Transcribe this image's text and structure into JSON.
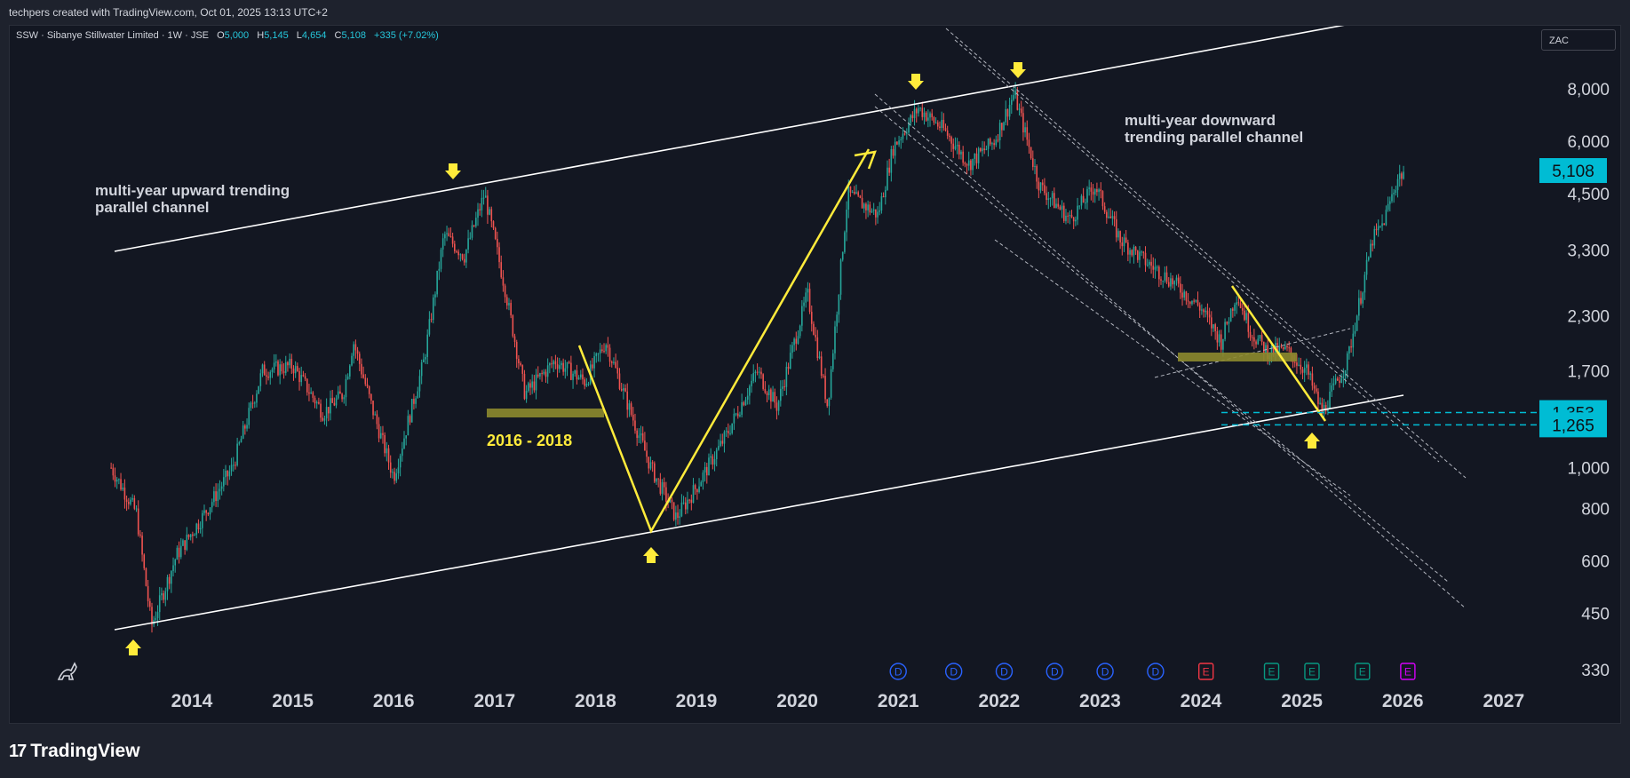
{
  "header": {
    "credit": "techpers created with TradingView.com, Oct 01, 2025 13:13 UTC+2"
  },
  "legend": {
    "symbol": "SSW · Sibanye Stillwater Limited · 1W · JSE",
    "o_label": "O",
    "o_value": "5,000",
    "h_label": "H",
    "h_value": "5,145",
    "l_label": "L",
    "l_value": "4,654",
    "c_label": "C",
    "c_value": "5,108",
    "change": "+335 (+7.02%)"
  },
  "currency": "ZAC",
  "footer": {
    "brand": "TradingView"
  },
  "colors": {
    "background": "#131722",
    "up": "#26a69a",
    "down": "#ef5350",
    "highlight": "#ffeb3b",
    "accent": "#00bcd4"
  },
  "annotations": {
    "upward_channel": [
      "multi-year upward trending",
      "parallel channel"
    ],
    "downward_channel": [
      "multi-year downward",
      "trending parallel channel"
    ],
    "range": "2016 - 2018"
  },
  "chart_data": {
    "type": "candlestick",
    "scale": "log",
    "ylim": [
      330,
      10500
    ],
    "x_ticks": [
      "2014",
      "2015",
      "2016",
      "2017",
      "2018",
      "2019",
      "2020",
      "2021",
      "2022",
      "2023",
      "2024",
      "2025",
      "2026",
      "2027"
    ],
    "y_ticks": [
      {
        "value": 8000,
        "label": "8,000"
      },
      {
        "value": 6000,
        "label": "6,000"
      },
      {
        "value": 4500,
        "label": "4,500"
      },
      {
        "value": 3300,
        "label": "3,300"
      },
      {
        "value": 2300,
        "label": "2,300"
      },
      {
        "value": 1700,
        "label": "1,700"
      },
      {
        "value": 1000,
        "label": "1,000"
      },
      {
        "value": 800,
        "label": "800"
      },
      {
        "value": 600,
        "label": "600"
      },
      {
        "value": 450,
        "label": "450"
      },
      {
        "value": 330,
        "label": "330"
      }
    ],
    "price_labels": [
      {
        "value": 5108,
        "label": "5,108"
      },
      {
        "value": 1353,
        "label": "1,353"
      },
      {
        "value": 1265,
        "label": "1,265"
      }
    ],
    "price_path": [
      [
        2013.2,
        1000
      ],
      [
        2013.45,
        780
      ],
      [
        2013.6,
        420
      ],
      [
        2013.85,
        620
      ],
      [
        2014.1,
        760
      ],
      [
        2014.4,
        1000
      ],
      [
        2014.7,
        1700
      ],
      [
        2015.0,
        1750
      ],
      [
        2015.3,
        1350
      ],
      [
        2015.5,
        1500
      ],
      [
        2015.6,
        2000
      ],
      [
        2015.8,
        1350
      ],
      [
        2016.0,
        950
      ],
      [
        2016.3,
        1800
      ],
      [
        2016.5,
        3600
      ],
      [
        2016.7,
        3200
      ],
      [
        2016.9,
        4500
      ],
      [
        2017.1,
        2700
      ],
      [
        2017.3,
        1500
      ],
      [
        2017.6,
        1800
      ],
      [
        2017.9,
        1600
      ],
      [
        2018.1,
        2000
      ],
      [
        2018.35,
        1350
      ],
      [
        2018.55,
        1000
      ],
      [
        2018.8,
        760
      ],
      [
        2019.0,
        900
      ],
      [
        2019.3,
        1200
      ],
      [
        2019.6,
        1700
      ],
      [
        2019.8,
        1400
      ],
      [
        2020.1,
        2600
      ],
      [
        2020.3,
        1400
      ],
      [
        2020.5,
        4500
      ],
      [
        2020.8,
        4000
      ],
      [
        2020.95,
        5800
      ],
      [
        2021.2,
        7200
      ],
      [
        2021.45,
        6400
      ],
      [
        2021.7,
        5300
      ],
      [
        2021.95,
        6000
      ],
      [
        2022.15,
        7800
      ],
      [
        2022.4,
        4700
      ],
      [
        2022.7,
        3900
      ],
      [
        2022.95,
        4700
      ],
      [
        2023.2,
        3500
      ],
      [
        2023.45,
        3100
      ],
      [
        2023.7,
        2800
      ],
      [
        2024.0,
        2400
      ],
      [
        2024.2,
        2000
      ],
      [
        2024.35,
        2600
      ],
      [
        2024.5,
        2100
      ],
      [
        2024.65,
        1900
      ],
      [
        2024.85,
        1900
      ],
      [
        2025.05,
        1700
      ],
      [
        2025.2,
        1350
      ],
      [
        2025.45,
        1800
      ],
      [
        2025.7,
        3500
      ],
      [
        2025.8,
        3800
      ],
      [
        2025.95,
        4900
      ],
      [
        2026.02,
        5108
      ]
    ],
    "event_markers": [
      {
        "x": 2021.0,
        "letter": "D",
        "color": "#2962ff"
      },
      {
        "x": 2021.55,
        "letter": "D",
        "color": "#2962ff"
      },
      {
        "x": 2022.05,
        "letter": "D",
        "color": "#2962ff"
      },
      {
        "x": 2022.55,
        "letter": "D",
        "color": "#2962ff"
      },
      {
        "x": 2023.05,
        "letter": "D",
        "color": "#2962ff"
      },
      {
        "x": 2023.55,
        "letter": "D",
        "color": "#2962ff"
      },
      {
        "x": 2024.05,
        "letter": "E",
        "color": "#f23645"
      },
      {
        "x": 2024.7,
        "letter": "E",
        "color": "#089981"
      },
      {
        "x": 2025.1,
        "letter": "E",
        "color": "#089981"
      },
      {
        "x": 2025.6,
        "letter": "E",
        "color": "#089981"
      },
      {
        "x": 2026.05,
        "letter": "E",
        "color": "#d500f9"
      }
    ]
  }
}
